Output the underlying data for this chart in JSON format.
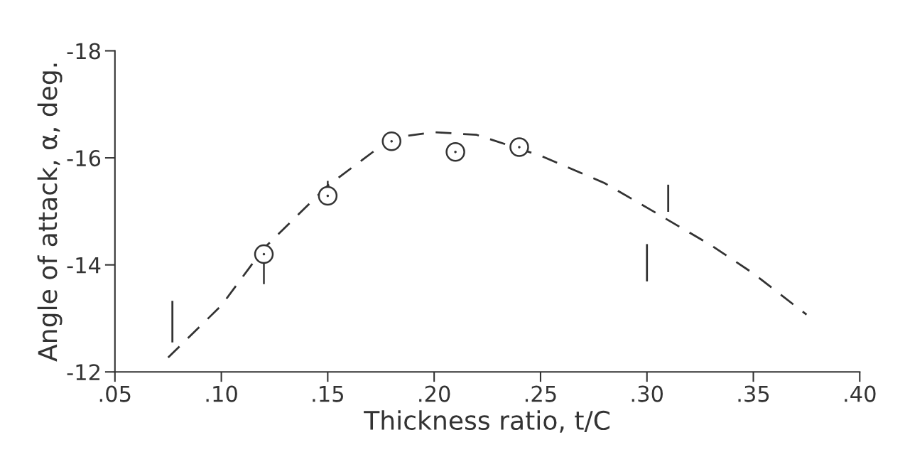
{
  "chart_data": {
    "type": "line",
    "xlabel": "Thickness ratio, t/C",
    "ylabel": "Angle of attack, α, deg.",
    "xlim": [
      0.05,
      0.4
    ],
    "ylim": [
      -12,
      -18
    ],
    "xticks": [
      {
        "value": 0.05,
        "label": ".05"
      },
      {
        "value": 0.1,
        "label": ".10"
      },
      {
        "value": 0.15,
        "label": ".15"
      },
      {
        "value": 0.2,
        "label": ".20"
      },
      {
        "value": 0.25,
        "label": ".25"
      },
      {
        "value": 0.3,
        "label": ".30"
      },
      {
        "value": 0.35,
        "label": ".35"
      },
      {
        "value": 0.4,
        "label": ".40"
      }
    ],
    "yticks": [
      -18,
      -16,
      -14,
      -12
    ],
    "grid": false,
    "legend": false,
    "series": [
      {
        "color": "#333333",
        "line_style": "dashed",
        "marker": "none",
        "x": [
          0.075,
          0.1,
          0.12,
          0.15,
          0.18,
          0.2,
          0.22,
          0.25,
          0.28,
          0.3,
          0.33,
          0.35,
          0.375
        ],
        "values": [
          -12.27,
          -13.24,
          -14.31,
          -15.48,
          -16.37,
          -16.48,
          -16.43,
          -16.04,
          -15.53,
          -15.07,
          -14.37,
          -13.84,
          -13.07
        ]
      },
      {
        "type": "scatter",
        "color": "#333333",
        "marker": "circle",
        "x": [
          0.12,
          0.15,
          0.18,
          0.21,
          0.24
        ],
        "values": [
          -14.2,
          -15.29,
          -16.31,
          -16.11,
          -16.2
        ],
        "errors": [
          [
            -14.2,
            -13.64
          ],
          [
            -15.57,
            -15.29
          ],
          null,
          null,
          null
        ]
      },
      {
        "type": "line",
        "color": "#333333",
        "line_style": "solid",
        "marker": "none",
        "x": [
          0.077,
          0.077
        ],
        "values": [
          -12.57,
          -13.31
        ]
      },
      {
        "type": "line",
        "color": "#333333",
        "line_style": "solid",
        "marker": "none",
        "x": [
          0.3,
          0.3
        ],
        "values": [
          -13.71,
          -14.37
        ]
      },
      {
        "type": "line",
        "color": "#333333",
        "line_style": "solid",
        "marker": "none",
        "x": [
          0.31,
          0.31
        ],
        "values": [
          -15.01,
          -15.48
        ]
      }
    ]
  }
}
